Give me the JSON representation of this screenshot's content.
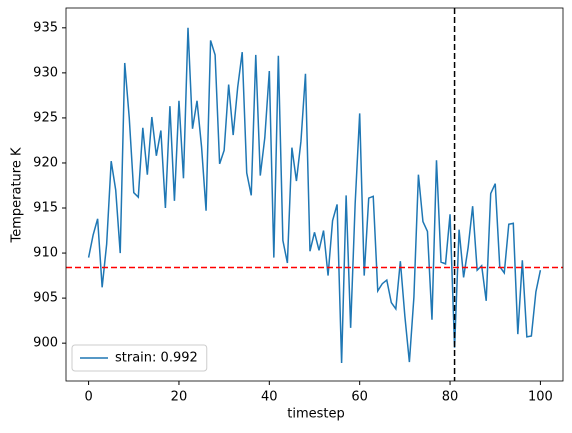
{
  "chart_data": {
    "type": "line",
    "xlabel": "timestep",
    "ylabel": "Temperature K",
    "x": [
      0,
      1,
      2,
      3,
      4,
      5,
      6,
      7,
      8,
      9,
      10,
      11,
      12,
      13,
      14,
      15,
      16,
      17,
      18,
      19,
      20,
      21,
      22,
      23,
      24,
      25,
      26,
      27,
      28,
      29,
      30,
      31,
      32,
      33,
      34,
      35,
      36,
      37,
      38,
      39,
      40,
      41,
      42,
      43,
      44,
      45,
      46,
      47,
      48,
      49,
      50,
      51,
      52,
      53,
      54,
      55,
      56,
      57,
      58,
      59,
      60,
      61,
      62,
      63,
      64,
      65,
      66,
      67,
      68,
      69,
      70,
      71,
      72,
      73,
      74,
      75,
      76,
      77,
      78,
      79,
      80,
      81,
      82,
      83,
      84,
      85,
      86,
      87,
      88,
      89,
      90,
      91,
      92,
      93,
      94,
      95,
      96,
      97,
      98,
      99,
      100
    ],
    "series": [
      {
        "name": "strain: 0.992",
        "color": "#1f77b4",
        "values": [
          909.5,
          912,
          913.8,
          906.2,
          911,
          920.2,
          917,
          910,
          931.1,
          925,
          916.7,
          916.2,
          923.9,
          918.7,
          925.1,
          920.8,
          923.6,
          915,
          926.3,
          915.8,
          926.9,
          918.3,
          935,
          923.8,
          926.9,
          921.8,
          914.7,
          933.6,
          932,
          919.9,
          921.4,
          928.7,
          923.1,
          928.4,
          932.3,
          918.9,
          916.4,
          932,
          918.6,
          922.8,
          930.2,
          909.5,
          931.9,
          911.4,
          908.9,
          921.7,
          918,
          922.4,
          929.9,
          910.2,
          912.3,
          910.3,
          912.5,
          907.5,
          913.6,
          915.4,
          897.8,
          916.4,
          901.7,
          915.5,
          925.5,
          907.5,
          916.1,
          916.3,
          905.8,
          906.6,
          907,
          904.5,
          903.8,
          909.1,
          903,
          897.9,
          905.1,
          918.7,
          913.5,
          912.4,
          902.6,
          920.3,
          909,
          908.8,
          914.3,
          899.5,
          912.6,
          907.3,
          910.6,
          915.2,
          908.1,
          908.6,
          904.7,
          916.6,
          917.7,
          908.5,
          907.8,
          913.2,
          913.3,
          901,
          909.2,
          900.7,
          900.8,
          905.7,
          908.1
        ]
      }
    ],
    "hlines": [
      {
        "value": 908.4,
        "color": "#ff0000"
      }
    ],
    "vlines": [
      {
        "value": 81,
        "color": "#000000"
      }
    ],
    "xlim": [
      -5,
      105
    ],
    "ylim": [
      895.8,
      937.2
    ],
    "xticks": [
      0,
      20,
      40,
      60,
      80,
      100
    ],
    "yticks": [
      900,
      905,
      910,
      915,
      920,
      925,
      930,
      935
    ],
    "legend": "lower left",
    "grid": false
  }
}
